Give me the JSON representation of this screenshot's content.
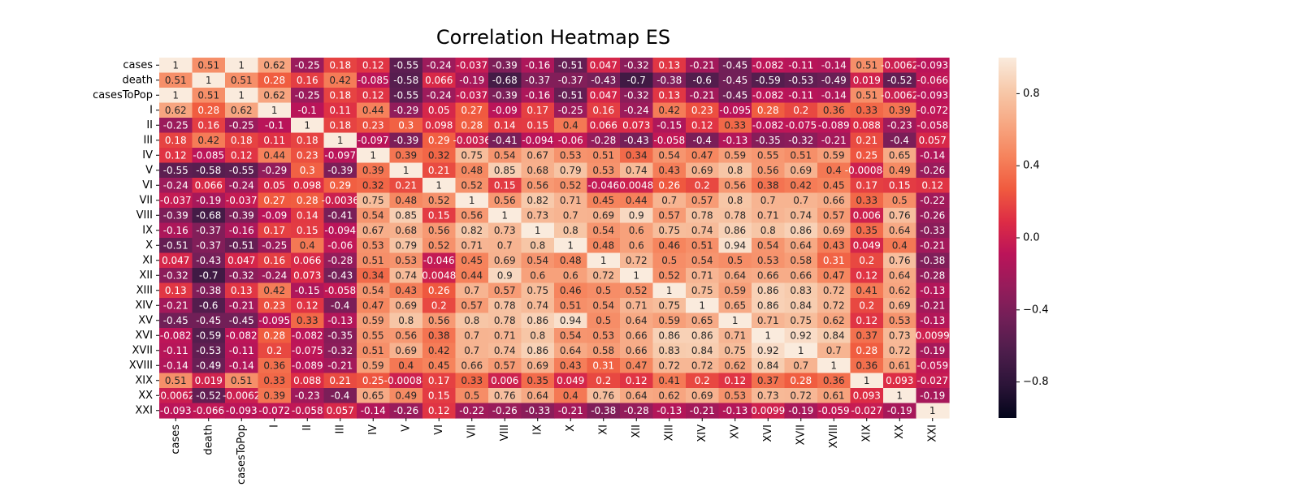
{
  "chart_data": {
    "type": "heatmap",
    "title": "Correlation Heatmap ES",
    "labels": [
      "cases",
      "death",
      "casesToPop",
      "I",
      "II",
      "III",
      "IV",
      "V",
      "VI",
      "VII",
      "VIII",
      "IX",
      "X",
      "XI",
      "XII",
      "XIII",
      "XIV",
      "XV",
      "XVI",
      "XVII",
      "XVIII",
      "XIX",
      "XX",
      "XXI"
    ],
    "matrix": [
      [
        "1",
        "0.51",
        "1",
        "0.62",
        "-0.25",
        "0.18",
        "0.12",
        "-0.55",
        "-0.24",
        "-0.037",
        "-0.39",
        "-0.16",
        "-0.51",
        "0.047",
        "-0.32",
        "0.13",
        "-0.21",
        "-0.45",
        "-0.082",
        "-0.11",
        "-0.14",
        "0.51",
        "-0.0062",
        "-0.093"
      ],
      [
        "0.51",
        "1",
        "0.51",
        "0.28",
        "0.16",
        "0.42",
        "-0.085",
        "-0.58",
        "0.066",
        "-0.19",
        "-0.68",
        "-0.37",
        "-0.37",
        "-0.43",
        "-0.7",
        "-0.38",
        "-0.6",
        "-0.45",
        "-0.59",
        "-0.53",
        "-0.49",
        "0.019",
        "-0.52",
        "-0.066"
      ],
      [
        "1",
        "0.51",
        "1",
        "0.62",
        "-0.25",
        "0.18",
        "0.12",
        "-0.55",
        "-0.24",
        "-0.037",
        "-0.39",
        "-0.16",
        "-0.51",
        "0.047",
        "-0.32",
        "0.13",
        "-0.21",
        "-0.45",
        "-0.082",
        "-0.11",
        "-0.14",
        "0.51",
        "-0.0062",
        "-0.093"
      ],
      [
        "0.62",
        "0.28",
        "0.62",
        "1",
        "-0.1",
        "0.11",
        "0.44",
        "-0.29",
        "0.05",
        "0.27",
        "-0.09",
        "0.17",
        "-0.25",
        "0.16",
        "-0.24",
        "0.42",
        "0.23",
        "-0.095",
        "0.28",
        "0.2",
        "0.36",
        "0.33",
        "0.39",
        "-0.072"
      ],
      [
        "-0.25",
        "0.16",
        "-0.25",
        "-0.1",
        "1",
        "0.18",
        "0.23",
        "0.3",
        "0.098",
        "0.28",
        "0.14",
        "0.15",
        "0.4",
        "0.066",
        "0.073",
        "-0.15",
        "0.12",
        "0.33",
        "-0.082",
        "-0.075",
        "-0.089",
        "0.088",
        "-0.23",
        "-0.058"
      ],
      [
        "0.18",
        "0.42",
        "0.18",
        "0.11",
        "0.18",
        "1",
        "-0.097",
        "-0.39",
        "0.29",
        "-0.0036",
        "-0.41",
        "-0.094",
        "-0.06",
        "-0.28",
        "-0.43",
        "-0.058",
        "-0.4",
        "-0.13",
        "-0.35",
        "-0.32",
        "-0.21",
        "0.21",
        "-0.4",
        "0.057"
      ],
      [
        "0.12",
        "-0.085",
        "0.12",
        "0.44",
        "0.23",
        "-0.097",
        "1",
        "0.39",
        "0.32",
        "0.75",
        "0.54",
        "0.67",
        "0.53",
        "0.51",
        "0.34",
        "0.54",
        "0.47",
        "0.59",
        "0.55",
        "0.51",
        "0.59",
        "0.25",
        "0.65",
        "-0.14"
      ],
      [
        "-0.55",
        "-0.58",
        "-0.55",
        "-0.29",
        "0.3",
        "-0.39",
        "0.39",
        "1",
        "0.21",
        "0.48",
        "0.85",
        "0.68",
        "0.79",
        "0.53",
        "0.74",
        "0.43",
        "0.69",
        "0.8",
        "0.56",
        "0.69",
        "0.4",
        "-0.00084",
        "0.49",
        "-0.26"
      ],
      [
        "-0.24",
        "0.066",
        "-0.24",
        "0.05",
        "0.098",
        "0.29",
        "0.32",
        "0.21",
        "1",
        "0.52",
        "0.15",
        "0.56",
        "0.52",
        "-0.046",
        "0.0048",
        "0.26",
        "0.2",
        "0.56",
        "0.38",
        "0.42",
        "0.45",
        "0.17",
        "0.15",
        "0.12"
      ],
      [
        "-0.037",
        "-0.19",
        "-0.037",
        "0.27",
        "0.28",
        "-0.0036",
        "0.75",
        "0.48",
        "0.52",
        "1",
        "0.56",
        "0.82",
        "0.71",
        "0.45",
        "0.44",
        "0.7",
        "0.57",
        "0.8",
        "0.7",
        "0.7",
        "0.66",
        "0.33",
        "0.5",
        "-0.22"
      ],
      [
        "-0.39",
        "-0.68",
        "-0.39",
        "-0.09",
        "0.14",
        "-0.41",
        "0.54",
        "0.85",
        "0.15",
        "0.56",
        "1",
        "0.73",
        "0.7",
        "0.69",
        "0.9",
        "0.57",
        "0.78",
        "0.78",
        "0.71",
        "0.74",
        "0.57",
        "0.006",
        "0.76",
        "-0.26"
      ],
      [
        "-0.16",
        "-0.37",
        "-0.16",
        "0.17",
        "0.15",
        "-0.094",
        "0.67",
        "0.68",
        "0.56",
        "0.82",
        "0.73",
        "1",
        "0.8",
        "0.54",
        "0.6",
        "0.75",
        "0.74",
        "0.86",
        "0.8",
        "0.86",
        "0.69",
        "0.35",
        "0.64",
        "-0.33"
      ],
      [
        "-0.51",
        "-0.37",
        "-0.51",
        "-0.25",
        "0.4",
        "-0.06",
        "0.53",
        "0.79",
        "0.52",
        "0.71",
        "0.7",
        "0.8",
        "1",
        "0.48",
        "0.6",
        "0.46",
        "0.51",
        "0.94",
        "0.54",
        "0.64",
        "0.43",
        "0.049",
        "0.4",
        "-0.21"
      ],
      [
        "0.047",
        "-0.43",
        "0.047",
        "0.16",
        "0.066",
        "-0.28",
        "0.51",
        "0.53",
        "-0.046",
        "0.45",
        "0.69",
        "0.54",
        "0.48",
        "1",
        "0.72",
        "0.5",
        "0.54",
        "0.5",
        "0.53",
        "0.58",
        "0.31",
        "0.2",
        "0.76",
        "-0.38"
      ],
      [
        "-0.32",
        "-0.7",
        "-0.32",
        "-0.24",
        "0.073",
        "-0.43",
        "0.34",
        "0.74",
        "0.0048",
        "0.44",
        "0.9",
        "0.6",
        "0.6",
        "0.72",
        "1",
        "0.52",
        "0.71",
        "0.64",
        "0.66",
        "0.66",
        "0.47",
        "0.12",
        "0.64",
        "-0.28"
      ],
      [
        "0.13",
        "-0.38",
        "0.13",
        "0.42",
        "-0.15",
        "-0.058",
        "0.54",
        "0.43",
        "0.26",
        "0.7",
        "0.57",
        "0.75",
        "0.46",
        "0.5",
        "0.52",
        "1",
        "0.75",
        "0.59",
        "0.86",
        "0.83",
        "0.72",
        "0.41",
        "0.62",
        "-0.13"
      ],
      [
        "-0.21",
        "-0.6",
        "-0.21",
        "0.23",
        "0.12",
        "-0.4",
        "0.47",
        "0.69",
        "0.2",
        "0.57",
        "0.78",
        "0.74",
        "0.51",
        "0.54",
        "0.71",
        "0.75",
        "1",
        "0.65",
        "0.86",
        "0.84",
        "0.72",
        "0.2",
        "0.69",
        "-0.21"
      ],
      [
        "-0.45",
        "-0.45",
        "-0.45",
        "-0.095",
        "0.33",
        "-0.13",
        "0.59",
        "0.8",
        "0.56",
        "0.8",
        "0.78",
        "0.86",
        "0.94",
        "0.5",
        "0.64",
        "0.59",
        "0.65",
        "1",
        "0.71",
        "0.75",
        "0.62",
        "0.12",
        "0.53",
        "-0.13"
      ],
      [
        "-0.082",
        "-0.59",
        "-0.082",
        "0.28",
        "-0.082",
        "-0.35",
        "0.55",
        "0.56",
        "0.38",
        "0.7",
        "0.71",
        "0.8",
        "0.54",
        "0.53",
        "0.66",
        "0.86",
        "0.86",
        "0.71",
        "1",
        "0.92",
        "0.84",
        "0.37",
        "0.73",
        "0.0099"
      ],
      [
        "-0.11",
        "-0.53",
        "-0.11",
        "0.2",
        "-0.075",
        "-0.32",
        "0.51",
        "0.69",
        "0.42",
        "0.7",
        "0.74",
        "0.86",
        "0.64",
        "0.58",
        "0.66",
        "0.83",
        "0.84",
        "0.75",
        "0.92",
        "1",
        "0.7",
        "0.28",
        "0.72",
        "-0.19"
      ],
      [
        "-0.14",
        "-0.49",
        "-0.14",
        "0.36",
        "-0.089",
        "-0.21",
        "0.59",
        "0.4",
        "0.45",
        "0.66",
        "0.57",
        "0.69",
        "0.43",
        "0.31",
        "0.47",
        "0.72",
        "0.72",
        "0.62",
        "0.84",
        "0.7",
        "1",
        "0.36",
        "0.61",
        "-0.059"
      ],
      [
        "0.51",
        "0.019",
        "0.51",
        "0.33",
        "0.088",
        "0.21",
        "0.25",
        "-0.00084",
        "0.17",
        "0.33",
        "0.006",
        "0.35",
        "0.049",
        "0.2",
        "0.12",
        "0.41",
        "0.2",
        "0.12",
        "0.37",
        "0.28",
        "0.36",
        "1",
        "0.093",
        "-0.027"
      ],
      [
        "-0.0062",
        "-0.52",
        "-0.0062",
        "0.39",
        "-0.23",
        "-0.4",
        "0.65",
        "0.49",
        "0.15",
        "0.5",
        "0.76",
        "0.64",
        "0.4",
        "0.76",
        "0.64",
        "0.62",
        "0.69",
        "0.53",
        "0.73",
        "0.72",
        "0.61",
        "0.093",
        "1",
        "-0.19"
      ],
      [
        "-0.093",
        "-0.066",
        "-0.093",
        "-0.072",
        "-0.058",
        "0.057",
        "-0.14",
        "-0.26",
        "0.12",
        "-0.22",
        "-0.26",
        "-0.33",
        "-0.21",
        "-0.38",
        "-0.28",
        "-0.13",
        "-0.21",
        "-0.13",
        "0.0099",
        "-0.19",
        "-0.059",
        "-0.027",
        "-0.19",
        "1"
      ]
    ],
    "vmin": -1,
    "vmax": 1,
    "colorbar_ticks": [
      0.8,
      0.4,
      0.0,
      -0.4,
      -0.8
    ],
    "colormap": "rocket",
    "colormap_stops": [
      "#03051a",
      "#2b1438",
      "#4c1d4b",
      "#701f57",
      "#961c5b",
      "#bb1459",
      "#dd2c45",
      "#f05b3f",
      "#f6845d",
      "#f7a883",
      "#f7c9aa",
      "#faebdd"
    ],
    "annot": true,
    "colorbar_position": "right"
  }
}
